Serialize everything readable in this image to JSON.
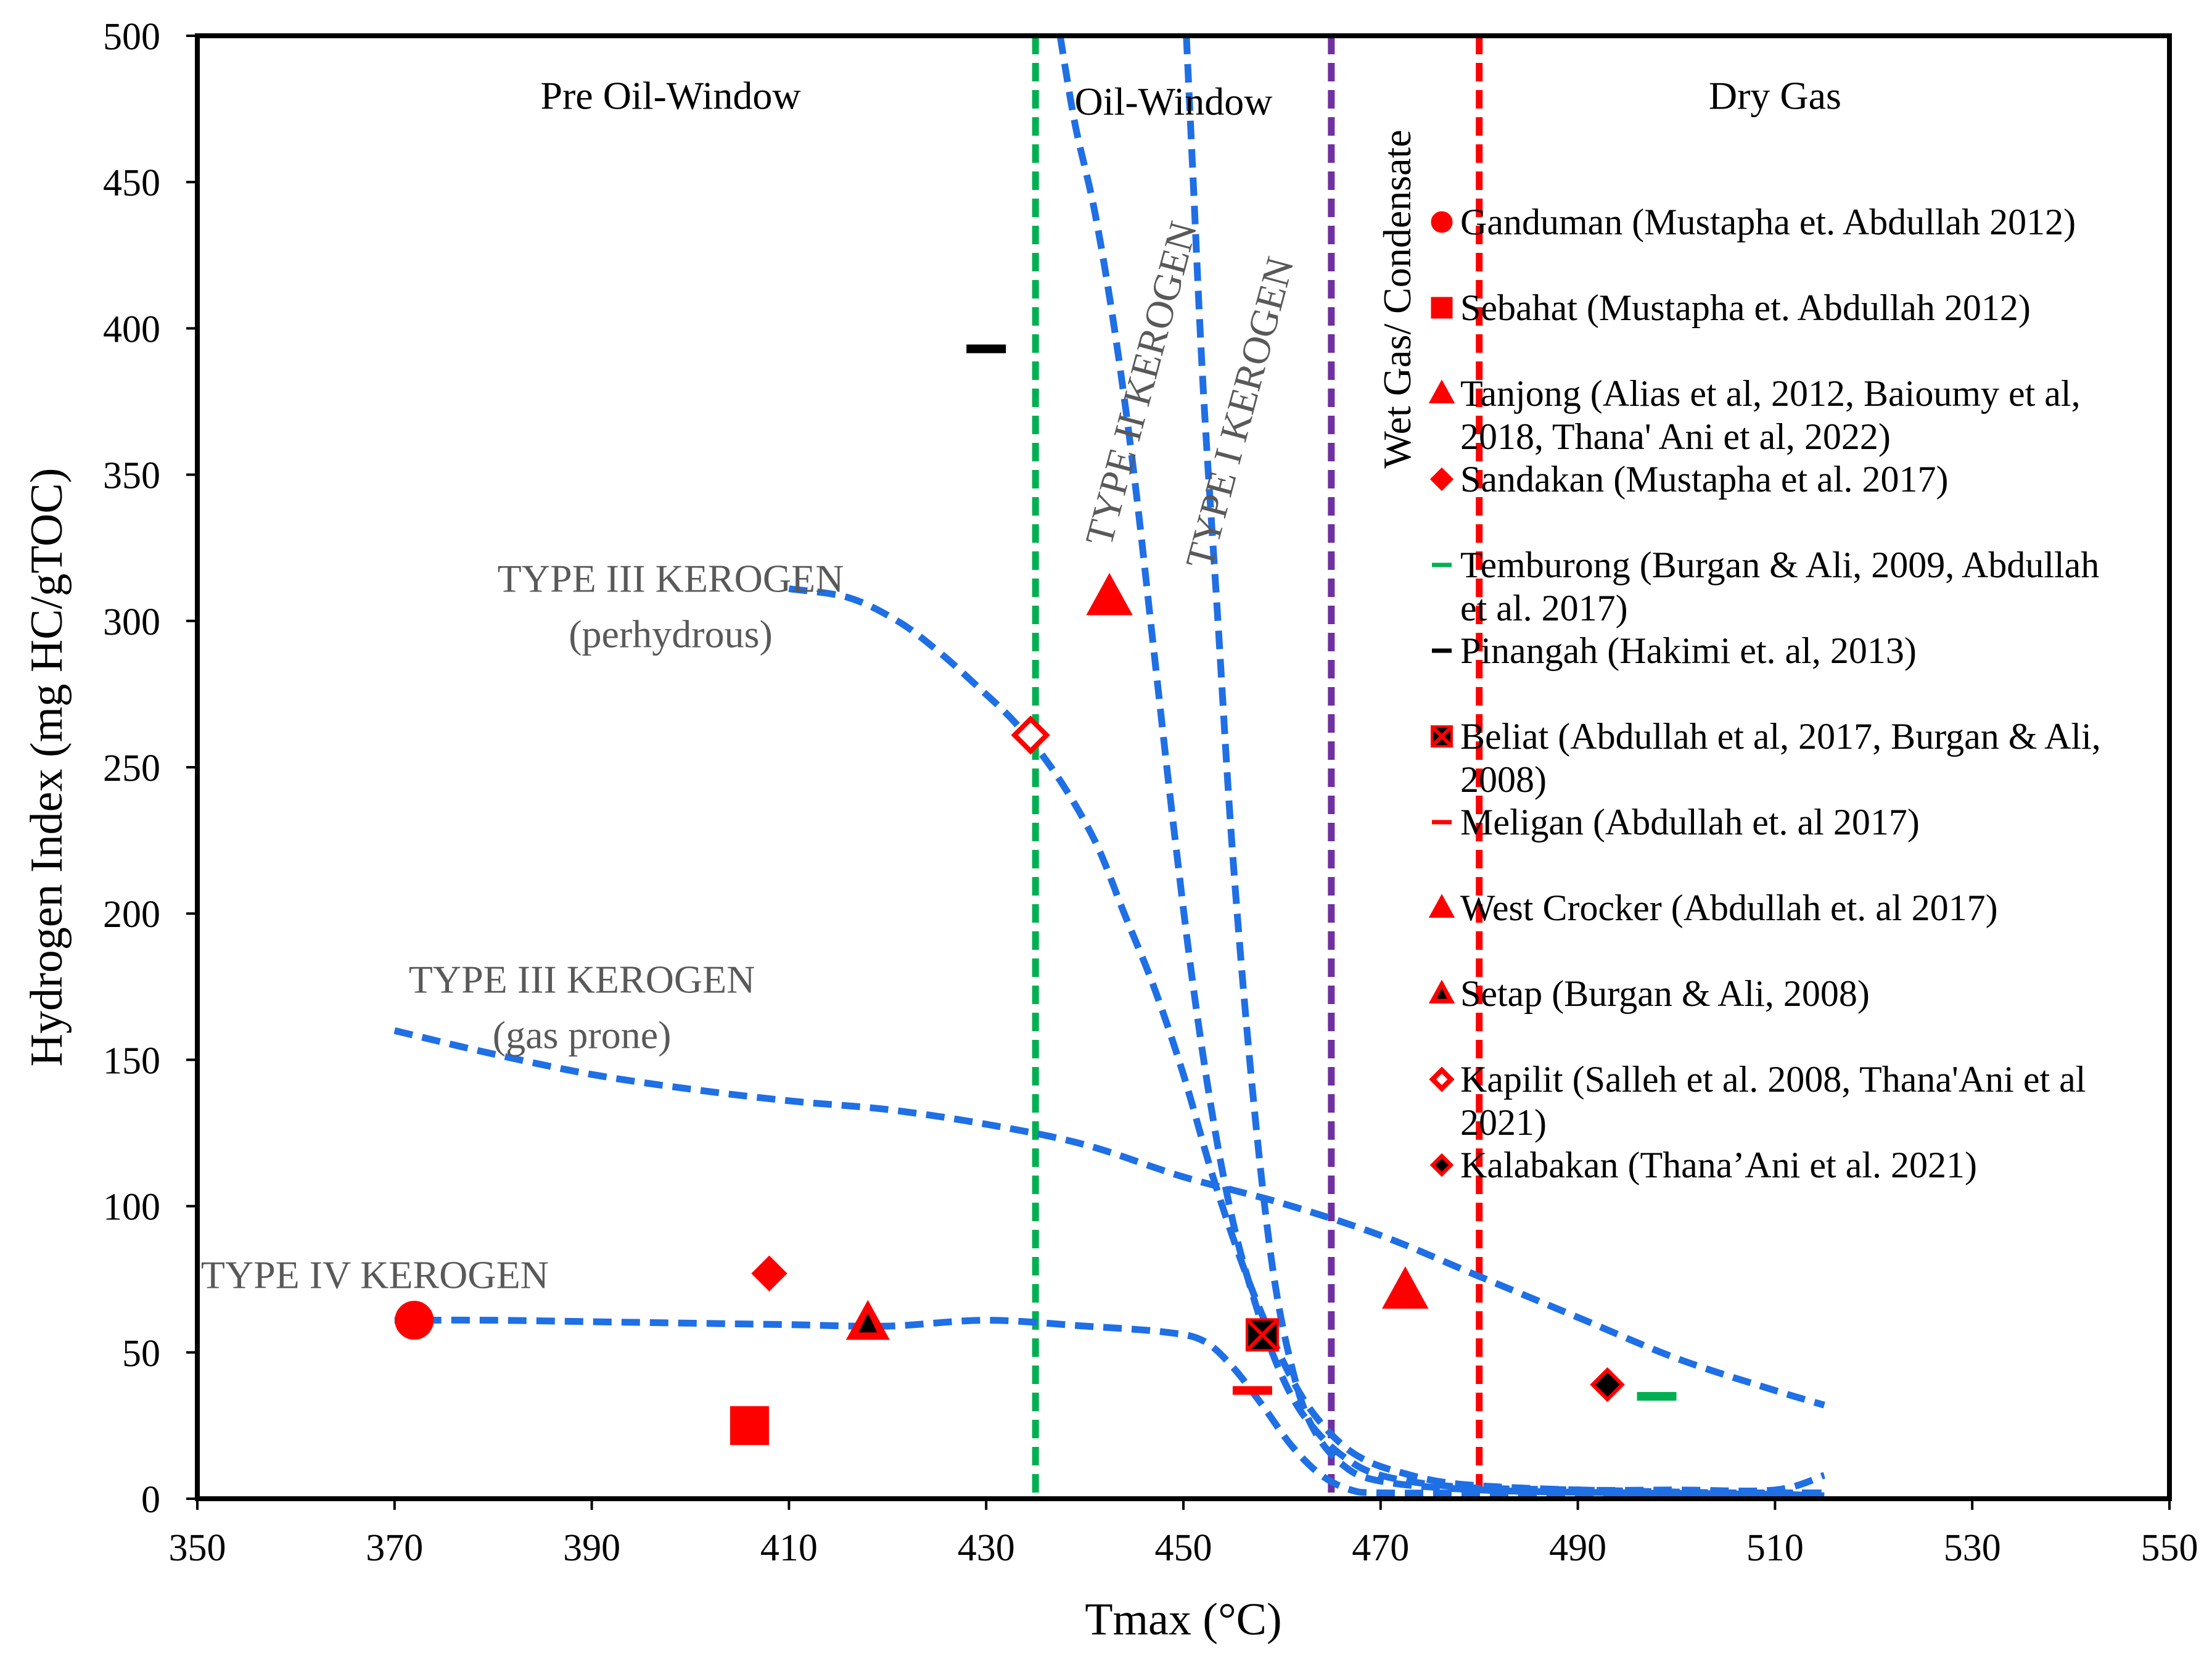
{
  "chart_data": {
    "type": "scatter",
    "xlabel": "Tmax (°C)",
    "ylabel": "Hydrogen Index (mg HC/gTOC)",
    "xlim": [
      350,
      550
    ],
    "ylim": [
      0,
      500
    ],
    "xticks": [
      350,
      370,
      390,
      410,
      430,
      450,
      470,
      490,
      510,
      530,
      550
    ],
    "yticks": [
      0,
      50,
      100,
      150,
      200,
      250,
      300,
      350,
      400,
      450,
      500
    ],
    "grid": false,
    "legend_position": "right",
    "zones": [
      {
        "label": "Pre Oil-Window",
        "x": 398,
        "y": 475
      },
      {
        "label": "Oil-Window",
        "x": 449,
        "y": 473
      },
      {
        "label": "Wet Gas/ Condensate",
        "x": 473,
        "y": 410,
        "rotated": true
      },
      {
        "label": "Dry Gas",
        "x": 510,
        "y": 475
      }
    ],
    "boundaries": [
      {
        "name": "oil-window-start",
        "x": 435,
        "color": "#00b050"
      },
      {
        "name": "wet-gas-start",
        "x": 465,
        "color": "#7030a0"
      },
      {
        "name": "dry-gas-start",
        "x": 480,
        "color": "#ff0000"
      }
    ],
    "kerogen_curves": [
      {
        "label": "TYPE I KEROGEN",
        "lines": [
          "TYPE I KEROGEN"
        ],
        "label_x": 457,
        "label_y": 370,
        "label_rotated": true,
        "points": [
          [
            450.3,
            500
          ],
          [
            451,
            450
          ],
          [
            452,
            380
          ],
          [
            453.5,
            300
          ],
          [
            455,
            220
          ],
          [
            457,
            140
          ],
          [
            459,
            80
          ],
          [
            461,
            45
          ],
          [
            463,
            25
          ],
          [
            466,
            12
          ],
          [
            470,
            6
          ],
          [
            480,
            3
          ],
          [
            495,
            2
          ],
          [
            510,
            1.5
          ],
          [
            515,
            1
          ]
        ]
      },
      {
        "label": "TYPE II KEROGEN",
        "lines": [
          "TYPE II KEROGEN"
        ],
        "label_x": 447,
        "label_y": 380,
        "label_rotated": true,
        "points": [
          [
            437.5,
            500
          ],
          [
            439,
            470
          ],
          [
            441,
            440
          ],
          [
            443,
            400
          ],
          [
            445,
            350
          ],
          [
            447,
            290
          ],
          [
            449,
            230
          ],
          [
            451,
            175
          ],
          [
            453,
            130
          ],
          [
            455,
            95
          ],
          [
            457,
            70
          ],
          [
            459,
            50
          ],
          [
            461,
            35
          ],
          [
            463,
            25
          ],
          [
            466,
            15
          ],
          [
            470,
            8
          ],
          [
            478,
            4
          ],
          [
            490,
            3
          ],
          [
            505,
            2
          ],
          [
            515,
            2
          ]
        ]
      },
      {
        "label": "TYPE III KEROGEN (perhydrous)",
        "lines": [
          "TYPE III KEROGEN",
          "(perhydrous)"
        ],
        "label_x": 398,
        "label_y": 310,
        "points": [
          [
            410,
            311
          ],
          [
            416,
            308
          ],
          [
            421,
            300
          ],
          [
            425,
            290
          ],
          [
            429,
            278
          ],
          [
            433,
            265
          ],
          [
            437,
            248
          ],
          [
            441,
            225
          ],
          [
            444,
            200
          ],
          [
            447,
            175
          ],
          [
            450,
            145
          ],
          [
            453,
            110
          ],
          [
            456,
            80
          ],
          [
            459,
            55
          ],
          [
            462,
            35
          ],
          [
            465,
            22
          ],
          [
            468,
            14
          ],
          [
            472,
            9
          ],
          [
            478,
            5
          ],
          [
            490,
            3
          ],
          [
            500,
            3
          ],
          [
            510,
            3
          ],
          [
            515,
            8
          ]
        ]
      },
      {
        "label": "TYPE III KEROGEN (gas prone)",
        "lines": [
          "TYPE III KEROGEN",
          "(gas prone)"
        ],
        "label_x": 389,
        "label_y": 173,
        "points": [
          [
            370,
            160
          ],
          [
            380,
            152
          ],
          [
            390,
            145
          ],
          [
            400,
            140
          ],
          [
            410,
            136
          ],
          [
            420,
            133
          ],
          [
            430,
            128
          ],
          [
            440,
            121
          ],
          [
            450,
            110
          ],
          [
            460,
            101
          ],
          [
            470,
            90
          ],
          [
            480,
            76
          ],
          [
            490,
            62
          ],
          [
            500,
            48
          ],
          [
            510,
            37
          ],
          [
            515,
            32
          ]
        ]
      },
      {
        "label": "TYPE IV KEROGEN",
        "lines": [
          "TYPE IV KEROGEN"
        ],
        "label_x": 368,
        "label_y": 72,
        "points": [
          [
            370,
            61
          ],
          [
            380,
            61
          ],
          [
            390,
            60.5
          ],
          [
            400,
            60
          ],
          [
            410,
            59.5
          ],
          [
            420,
            59
          ],
          [
            430,
            61
          ],
          [
            440,
            59
          ],
          [
            448,
            57
          ],
          [
            452,
            54
          ],
          [
            455,
            45
          ],
          [
            458,
            32
          ],
          [
            461,
            18
          ],
          [
            464,
            8
          ],
          [
            467,
            3
          ],
          [
            470,
            2
          ],
          [
            480,
            2
          ],
          [
            495,
            2
          ],
          [
            510,
            2
          ],
          [
            515,
            2
          ]
        ]
      }
    ],
    "series": [
      {
        "name": "Ganduman (Mustapha et. Abdullah 2012)",
        "marker": "circle",
        "fill": "#ff0000",
        "stroke": "#ff0000",
        "points": [
          [
            372,
            61
          ]
        ]
      },
      {
        "name": "Sebahat (Mustapha et. Abdullah 2012)",
        "marker": "square",
        "fill": "#ff0000",
        "stroke": "#ff0000",
        "points": [
          [
            406,
            25
          ]
        ]
      },
      {
        "name": "Tanjong (Alias et al, 2012, Baioumy et al, 2018, Thana' Ani et al, 2022)",
        "lines": [
          "Tanjong (Alias et al, 2012, Baioumy et al,",
          "2018, Thana' Ani et al, 2022)"
        ],
        "marker": "triangle",
        "fill": "#ff0000",
        "stroke": "#ff0000",
        "points": [
          [
            442.5,
            308
          ],
          [
            472.5,
            71
          ]
        ]
      },
      {
        "name": "Sandakan (Mustapha et al. 2017)",
        "marker": "diamond",
        "fill": "#ff0000",
        "stroke": "#ff0000",
        "points": [
          [
            408,
            77
          ]
        ]
      },
      {
        "name": "Temburong (Burgan & Ali, 2009, Abdullah et al. 2017)",
        "lines": [
          "Temburong (Burgan & Ali, 2009, Abdullah",
          "et al. 2017)"
        ],
        "marker": "dash",
        "fill": "#00b050",
        "stroke": "#00b050",
        "points": [
          [
            498,
            35
          ]
        ]
      },
      {
        "name": "Pinangah (Hakimi et. al, 2013)",
        "marker": "dash",
        "fill": "#000000",
        "stroke": "#000000",
        "points": [
          [
            430,
            393
          ]
        ]
      },
      {
        "name": "Beliat (Abdullah et al, 2017, Burgan & Ali, 2008)",
        "lines": [
          "Beliat (Abdullah et al, 2017, Burgan & Ali,",
          "2008)"
        ],
        "marker": "xsquare",
        "fill": "#000000",
        "stroke": "#ff0000",
        "points": [
          [
            458,
            56
          ]
        ]
      },
      {
        "name": "Meligan (Abdullah et. al 2017)",
        "marker": "dash",
        "fill": "#ff0000",
        "stroke": "#ff0000",
        "points": [
          [
            457,
            37
          ]
        ]
      },
      {
        "name": "West Crocker (Abdullah et. al 2017)",
        "marker": "triangle",
        "fill": "#ff0000",
        "stroke": "#ff0000",
        "points": []
      },
      {
        "name": "Setap (Burgan & Ali, 2008)",
        "marker": "triangle-inner",
        "fill": "#ff0000",
        "stroke": "#ff0000",
        "points": [
          [
            418,
            60
          ]
        ]
      },
      {
        "name": "Kapilit (Salleh et al. 2008, Thana'Ani et al 2021)",
        "lines": [
          "Kapilit (Salleh et al. 2008, Thana'Ani et al",
          "2021)"
        ],
        "marker": "diamond-open",
        "fill": "#ffffff",
        "stroke": "#ff0000",
        "points": [
          [
            434.5,
            261
          ]
        ]
      },
      {
        "name": "Kalabakan (Thana’Ani et al. 2021)",
        "marker": "diamond-black",
        "fill": "#000000",
        "stroke": "#ff0000",
        "points": [
          [
            493,
            39
          ]
        ]
      }
    ]
  }
}
